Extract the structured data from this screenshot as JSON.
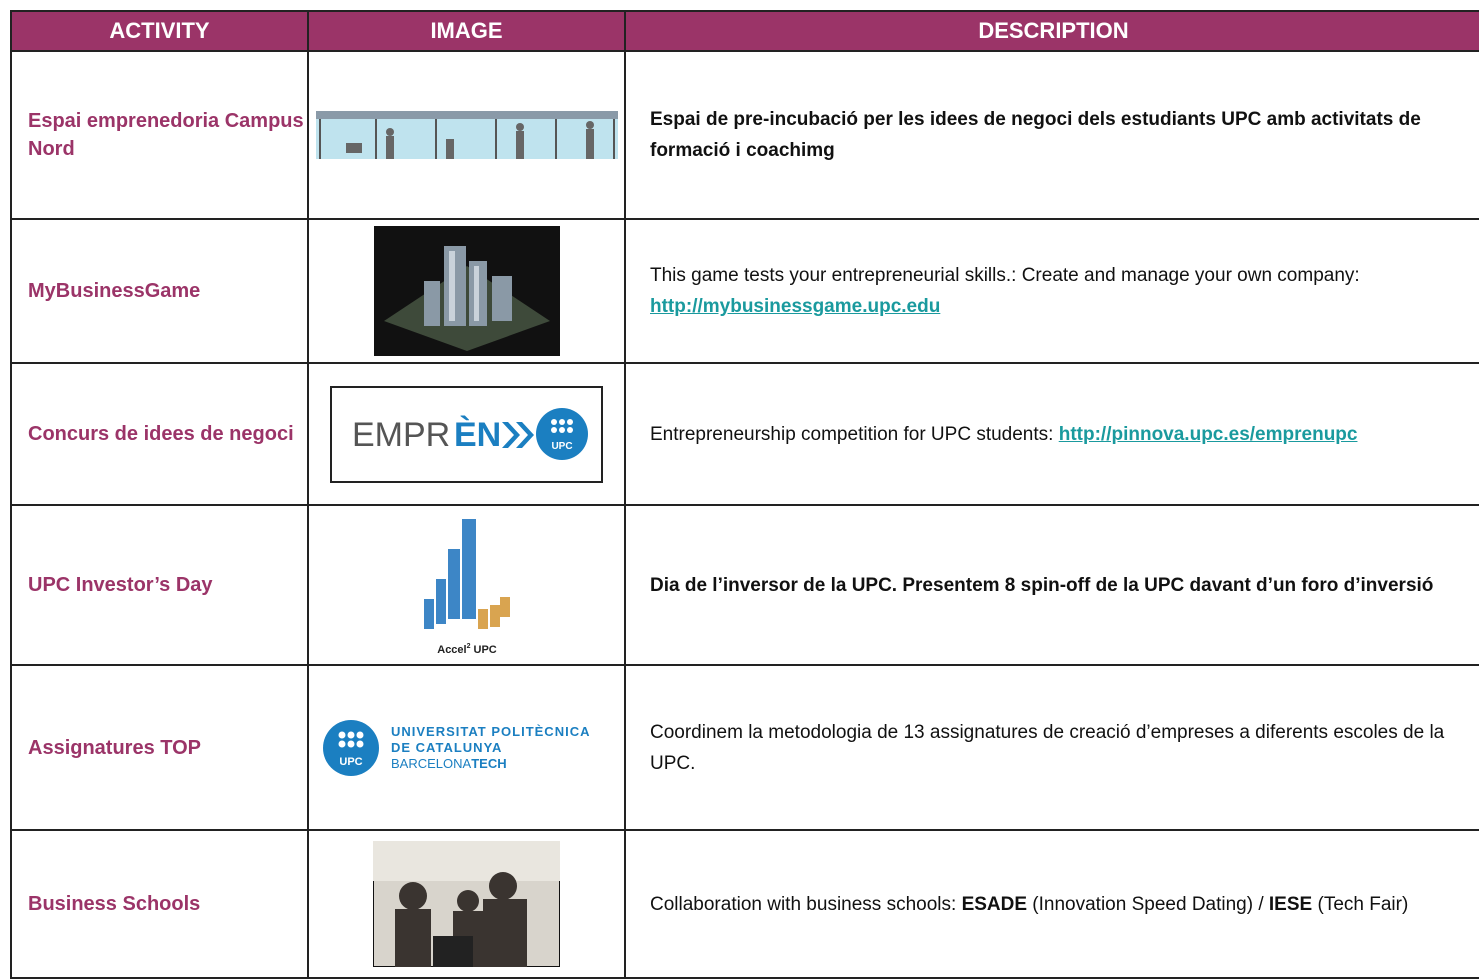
{
  "header": {
    "columns": [
      "ACTIVITY",
      "IMAGE",
      "DESCRIPTION"
    ]
  },
  "rows": [
    {
      "activity": "Espai emprenedoria Campus Nord",
      "description": [
        {
          "text": "Espai de pre-incubació per les idees de negoci dels estudiants UPC amb activitats de formació i coachimg",
          "style": "bold"
        }
      ]
    },
    {
      "activity": "MyBusinessGame",
      "description": [
        {
          "text": "This game tests your entrepreneurial skills.: Create and manage your own company: ",
          "style": "normal"
        },
        {
          "text": "http://mybusinessgame.upc.edu",
          "style": "link"
        }
      ]
    },
    {
      "activity": "Concurs de idees de negoci",
      "image_texts": [
        "EMPR",
        "ÈN",
        "UPC"
      ],
      "description": [
        {
          "text": "Entrepreneurship competition for UPC students: ",
          "style": "normal"
        },
        {
          "text": "http://pinnova.upc.es/emprenupc",
          "style": "link"
        }
      ]
    },
    {
      "activity": "UPC Investor’s Day",
      "image_texts": [
        "Accel",
        "2",
        "UPC"
      ],
      "description": [
        {
          "text": "Dia de l’inversor de la UPC. Presentem 8 spin-off de la UPC davant d’un foro d’inversió",
          "style": "bold"
        }
      ]
    },
    {
      "activity": "Assignatures TOP",
      "image_texts": [
        "UPC",
        "UNIVERSITAT POLITÈCNICA",
        "DE CATALUNYA",
        "BARCELONA",
        "TECH"
      ],
      "description": [
        {
          "text": "Coordinem la metodologia de 13 assignatures de creació d’empreses a diferents escoles de la UPC.",
          "style": "normal"
        }
      ]
    },
    {
      "activity": "Business Schools",
      "description": [
        {
          "text": "Collaboration with business schools: ",
          "style": "normal"
        },
        {
          "text": "ESADE",
          "style": "bold"
        },
        {
          "text": " (Innovation Speed Dating) / ",
          "style": "normal"
        },
        {
          "text": "IESE",
          "style": "bold"
        },
        {
          "text": " (Tech Fair)",
          "style": "normal"
        }
      ]
    }
  ]
}
